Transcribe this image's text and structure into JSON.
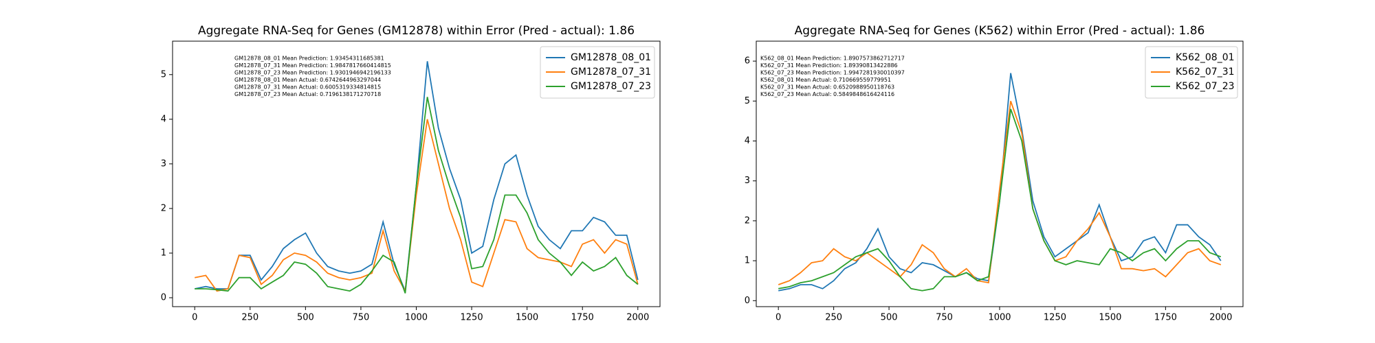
{
  "chart_data": [
    {
      "type": "line",
      "title": "Aggregate RNA-Seq for Genes (GM12878) within Error (Pred - actual): 1.86",
      "annotations": [
        "GM12878_08_01 Mean Prediction: 1.93454311685381",
        "GM12878_07_31 Mean Prediction: 1.9847817660414815",
        "GM12878_07_23 Mean Prediction: 1.9301946942196133",
        "GM12878_08_01 Mean Actual: 0.6742644963297044",
        "GM12878_07_31 Mean Actual: 0.6005319334814815",
        "GM12878_07_23 Mean Actual: 0.7196138171270718"
      ],
      "x": [
        0,
        50,
        100,
        150,
        200,
        250,
        300,
        350,
        400,
        450,
        500,
        550,
        600,
        650,
        700,
        750,
        800,
        850,
        900,
        950,
        1000,
        1050,
        1100,
        1150,
        1200,
        1250,
        1300,
        1350,
        1400,
        1450,
        1500,
        1550,
        1600,
        1650,
        1700,
        1750,
        1800,
        1850,
        1900,
        1950,
        2000
      ],
      "series": [
        {
          "name": "GM12878_08_01",
          "color": "#1f77b4",
          "values": [
            0.2,
            0.25,
            0.2,
            0.2,
            0.95,
            0.95,
            0.4,
            0.7,
            1.1,
            1.3,
            1.45,
            1.0,
            0.7,
            0.6,
            0.55,
            0.6,
            0.75,
            1.7,
            0.75,
            0.15,
            2.5,
            5.3,
            3.8,
            2.9,
            2.2,
            1.0,
            1.15,
            2.2,
            3.0,
            3.2,
            2.3,
            1.6,
            1.3,
            1.1,
            1.5,
            1.5,
            1.8,
            1.7,
            1.4,
            1.4,
            0.4
          ]
        },
        {
          "name": "GM12878_07_31",
          "color": "#ff7f0e",
          "values": [
            0.45,
            0.5,
            0.15,
            0.2,
            0.95,
            0.9,
            0.3,
            0.5,
            0.85,
            1.0,
            0.95,
            0.8,
            0.55,
            0.45,
            0.4,
            0.45,
            0.55,
            1.5,
            0.6,
            0.15,
            2.3,
            4.0,
            3.0,
            2.0,
            1.3,
            0.35,
            0.25,
            1.0,
            1.75,
            1.7,
            1.1,
            0.9,
            0.85,
            0.8,
            0.7,
            1.2,
            1.3,
            1.0,
            1.3,
            1.2,
            0.3
          ]
        },
        {
          "name": "GM12878_07_23",
          "color": "#2ca02c",
          "values": [
            0.2,
            0.2,
            0.18,
            0.15,
            0.45,
            0.45,
            0.2,
            0.35,
            0.5,
            0.8,
            0.75,
            0.55,
            0.25,
            0.2,
            0.15,
            0.3,
            0.6,
            0.95,
            0.8,
            0.1,
            2.5,
            4.5,
            3.3,
            2.5,
            1.8,
            0.65,
            0.7,
            1.3,
            2.3,
            2.3,
            1.9,
            1.3,
            1.0,
            0.8,
            0.5,
            0.8,
            0.6,
            0.7,
            0.9,
            0.5,
            0.3
          ]
        }
      ],
      "xlim": [
        -100,
        2100
      ],
      "ylim": [
        -0.2,
        5.75
      ],
      "xticks": [
        0,
        250,
        500,
        750,
        1000,
        1250,
        1500,
        1750,
        2000
      ],
      "yticks": [
        0,
        1,
        2,
        3,
        4,
        5
      ],
      "legend": "upper right"
    },
    {
      "type": "line",
      "title": "Aggregate RNA-Seq for Genes (K562) within Error (Pred - actual): 1.86",
      "annotations": [
        "K562_08_01 Mean Prediction: 1.8907573862712717",
        "K562_07_31 Mean Prediction: 1.89390813422886",
        "K562_07_23 Mean Prediction: 1.9947281930010397",
        "K562_08_01 Mean Actual: 0.710669559779951",
        "K562_07_31 Mean Actual: 0.6520988950118763",
        "K562_07_23 Mean Actual: 0.5849848616424116"
      ],
      "x": [
        0,
        50,
        100,
        150,
        200,
        250,
        300,
        350,
        400,
        450,
        500,
        550,
        600,
        650,
        700,
        750,
        800,
        850,
        900,
        950,
        1000,
        1050,
        1100,
        1150,
        1200,
        1250,
        1300,
        1350,
        1400,
        1450,
        1500,
        1550,
        1600,
        1650,
        1700,
        1750,
        1800,
        1850,
        1900,
        1950,
        2000
      ],
      "series": [
        {
          "name": "K562_08_01",
          "color": "#1f77b4",
          "values": [
            0.25,
            0.3,
            0.4,
            0.4,
            0.3,
            0.5,
            0.8,
            0.95,
            1.3,
            1.8,
            1.1,
            0.8,
            0.7,
            0.95,
            0.9,
            0.75,
            0.6,
            0.7,
            0.55,
            0.5,
            2.5,
            5.7,
            4.3,
            2.5,
            1.6,
            1.1,
            1.3,
            1.5,
            1.7,
            2.4,
            1.6,
            1.0,
            1.1,
            1.5,
            1.6,
            1.2,
            1.9,
            1.9,
            1.6,
            1.4,
            1.0
          ]
        },
        {
          "name": "K562_07_31",
          "color": "#ff7f0e",
          "values": [
            0.4,
            0.5,
            0.7,
            0.95,
            1.0,
            1.3,
            1.1,
            1.0,
            1.2,
            1.0,
            0.8,
            0.6,
            0.9,
            1.4,
            1.2,
            0.8,
            0.6,
            0.8,
            0.5,
            0.45,
            2.8,
            5.0,
            4.2,
            2.3,
            1.5,
            1.0,
            1.1,
            1.5,
            1.8,
            2.2,
            1.6,
            0.8,
            0.8,
            0.75,
            0.8,
            0.6,
            0.9,
            1.2,
            1.3,
            1.0,
            0.9
          ]
        },
        {
          "name": "K562_07_23",
          "color": "#2ca02c",
          "values": [
            0.3,
            0.35,
            0.45,
            0.5,
            0.6,
            0.7,
            0.9,
            1.1,
            1.2,
            1.3,
            1.0,
            0.6,
            0.3,
            0.25,
            0.3,
            0.6,
            0.6,
            0.7,
            0.5,
            0.6,
            2.5,
            4.8,
            4.0,
            2.3,
            1.5,
            1.0,
            0.9,
            1.0,
            0.95,
            0.9,
            1.3,
            1.2,
            1.0,
            1.2,
            1.3,
            1.0,
            1.3,
            1.5,
            1.5,
            1.2,
            1.1
          ]
        }
      ],
      "xlim": [
        -100,
        2100
      ],
      "ylim": [
        -0.15,
        6.5
      ],
      "xticks": [
        0,
        250,
        500,
        750,
        1000,
        1250,
        1500,
        1750,
        2000
      ],
      "yticks": [
        0,
        1,
        2,
        3,
        4,
        5,
        6
      ],
      "legend": "upper right"
    }
  ]
}
